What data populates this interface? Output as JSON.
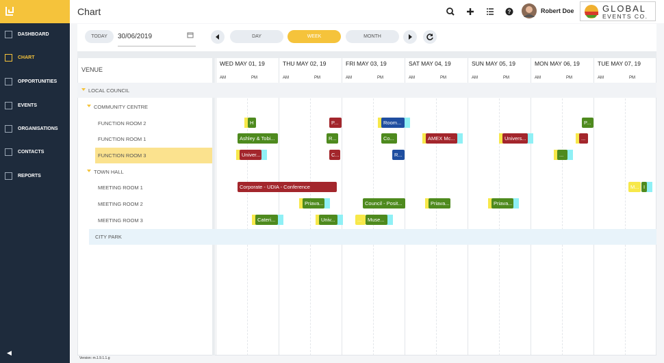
{
  "header": {
    "title": "Chart",
    "user": "Robert Doe",
    "logo": {
      "line1": "GLOBAL",
      "line2": "EVENTS CO."
    }
  },
  "sidebar": {
    "items": [
      "DASHBOARD",
      "CHART",
      "OPPORTUNITIES",
      "EVENTS",
      "ORGANISATIONS",
      "CONTACTS",
      "REPORTS"
    ],
    "active": 1
  },
  "toolbar": {
    "today": "TODAY",
    "date": "30/06/2019",
    "views": [
      "DAY",
      "WEEK",
      "MONTH"
    ],
    "active_view": 1
  },
  "grid": {
    "venue_header": "VENUE",
    "days": [
      "WED MAY 01, 19",
      "THU MAY 02, 19",
      "FRI MAY 03, 19",
      "SAT MAY 04, 19",
      "SUN MAY 05, 19",
      "MON MAY 06, 19",
      "TUE MAY 07, 19"
    ],
    "am": "AM",
    "pm": "PM",
    "rows": [
      {
        "label": "LOCAL COUNCIL",
        "level": 0,
        "group": true
      },
      {
        "label": "COMMUNITY CENTRE",
        "level": 1,
        "group": true
      },
      {
        "label": "FUNCTION ROOM 2",
        "level": 2
      },
      {
        "label": "FUNCTION ROOM 1",
        "level": 2
      },
      {
        "label": "FUNCTION ROOM 3",
        "level": 2,
        "selected": true
      },
      {
        "label": "TOWN HALL",
        "level": 1,
        "group": true
      },
      {
        "label": "MEETING ROOM 1",
        "level": 2
      },
      {
        "label": "MEETING ROOM 2",
        "level": 2
      },
      {
        "label": "MEETING ROOM 3",
        "level": 2
      },
      {
        "label": "CITY PARK",
        "level": 1,
        "highlight": true
      }
    ],
    "events": [
      {
        "row": 2,
        "label": "H",
        "color": "#4e8a1e"
      },
      {
        "row": 2,
        "label": "P...",
        "color": "#a3262c"
      },
      {
        "row": 2,
        "label": "Room...",
        "color": "#1f4ea0"
      },
      {
        "row": 2,
        "label": "P...",
        "color": "#4e8a1e"
      },
      {
        "row": 3,
        "label": "Ashley & Tobi...",
        "color": "#4e8a1e"
      },
      {
        "row": 3,
        "label": "R...",
        "color": "#4e8a1e"
      },
      {
        "row": 3,
        "label": "Co...",
        "color": "#4e8a1e"
      },
      {
        "row": 3,
        "label": "AMEX Mc...",
        "color": "#a3262c"
      },
      {
        "row": 3,
        "label": "Univers...",
        "color": "#a3262c"
      },
      {
        "row": 3,
        "label": "...",
        "color": "#a3262c"
      },
      {
        "row": 4,
        "label": "Univer...",
        "color": "#a3262c"
      },
      {
        "row": 4,
        "label": "C...",
        "color": "#a3262c"
      },
      {
        "row": 4,
        "label": "R...",
        "color": "#1f4ea0"
      },
      {
        "row": 4,
        "label": "...",
        "color": "#4e8a1e"
      },
      {
        "row": 6,
        "label": "Corporate - UDIA - Conference",
        "color": "#a3262c"
      },
      {
        "row": 6,
        "label": "M...",
        "color": "#f7e84a"
      },
      {
        "row": 6,
        "label": "I",
        "color": "#4e8a1e"
      },
      {
        "row": 7,
        "label": "Priava...",
        "color": "#4e8a1e"
      },
      {
        "row": 7,
        "label": "Council - Posit...",
        "color": "#4e8a1e"
      },
      {
        "row": 7,
        "label": "Priava...",
        "color": "#4e8a1e"
      },
      {
        "row": 7,
        "label": "Priava...",
        "color": "#4e8a1e"
      },
      {
        "row": 8,
        "label": "Cateri...",
        "color": "#4e8a1e"
      },
      {
        "row": 8,
        "label": "Univ...",
        "color": "#4e8a1e"
      },
      {
        "row": 8,
        "label": "...",
        "color": "#f7e84a"
      },
      {
        "row": 8,
        "label": "Muse...",
        "color": "#4e8a1e"
      }
    ]
  },
  "footer": {
    "version": "Version: m.1.9.1.1.g"
  }
}
